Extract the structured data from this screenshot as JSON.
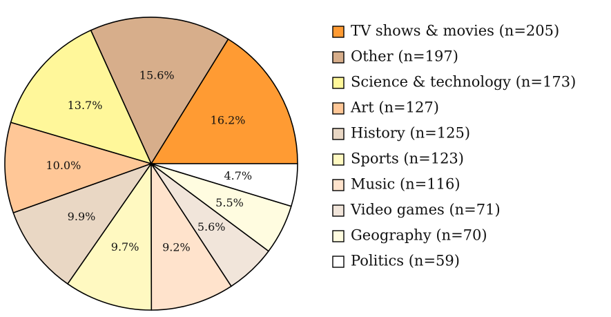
{
  "chart_data": {
    "type": "pie",
    "slices": [
      {
        "label": "TV shows & movies (n=205)",
        "value": 16.2,
        "value_label": "16.2%",
        "color": "#FF9B33"
      },
      {
        "label": "Other (n=197)",
        "value": 15.6,
        "value_label": "15.6%",
        "color": "#D7AE8B"
      },
      {
        "label": "Science & technology (n=173)",
        "value": 13.7,
        "value_label": "13.7%",
        "color": "#FFF79A"
      },
      {
        "label": "Art (n=127)",
        "value": 10.0,
        "value_label": "10.0%",
        "color": "#FFC797"
      },
      {
        "label": "History (n=125)",
        "value": 9.9,
        "value_label": "9.9%",
        "color": "#E9D7C4"
      },
      {
        "label": "Sports (n=123)",
        "value": 9.7,
        "value_label": "9.7%",
        "color": "#FFF9C1"
      },
      {
        "label": "Music (n=116)",
        "value": 9.2,
        "value_label": "9.2%",
        "color": "#FFE3CC"
      },
      {
        "label": "Video games (n=71)",
        "value": 5.6,
        "value_label": "5.6%",
        "color": "#F1E5DA"
      },
      {
        "label": "Geography (n=70)",
        "value": 5.5,
        "value_label": "5.5%",
        "color": "#FFFCE0"
      },
      {
        "label": "Politics (n=59)",
        "value": 4.7,
        "value_label": "4.7%",
        "color": "#FFFFFF"
      }
    ],
    "start": "right, counterclockwise",
    "legend_placement": "right"
  }
}
